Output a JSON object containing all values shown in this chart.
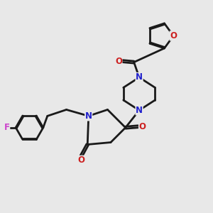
{
  "bg_color": "#e8e8e8",
  "bond_color": "#1a1a1a",
  "N_color": "#2020cc",
  "O_color": "#cc2020",
  "F_color": "#cc44cc",
  "lw": 2.0,
  "xlim": [
    0,
    10
  ],
  "ylim": [
    0,
    10
  ]
}
